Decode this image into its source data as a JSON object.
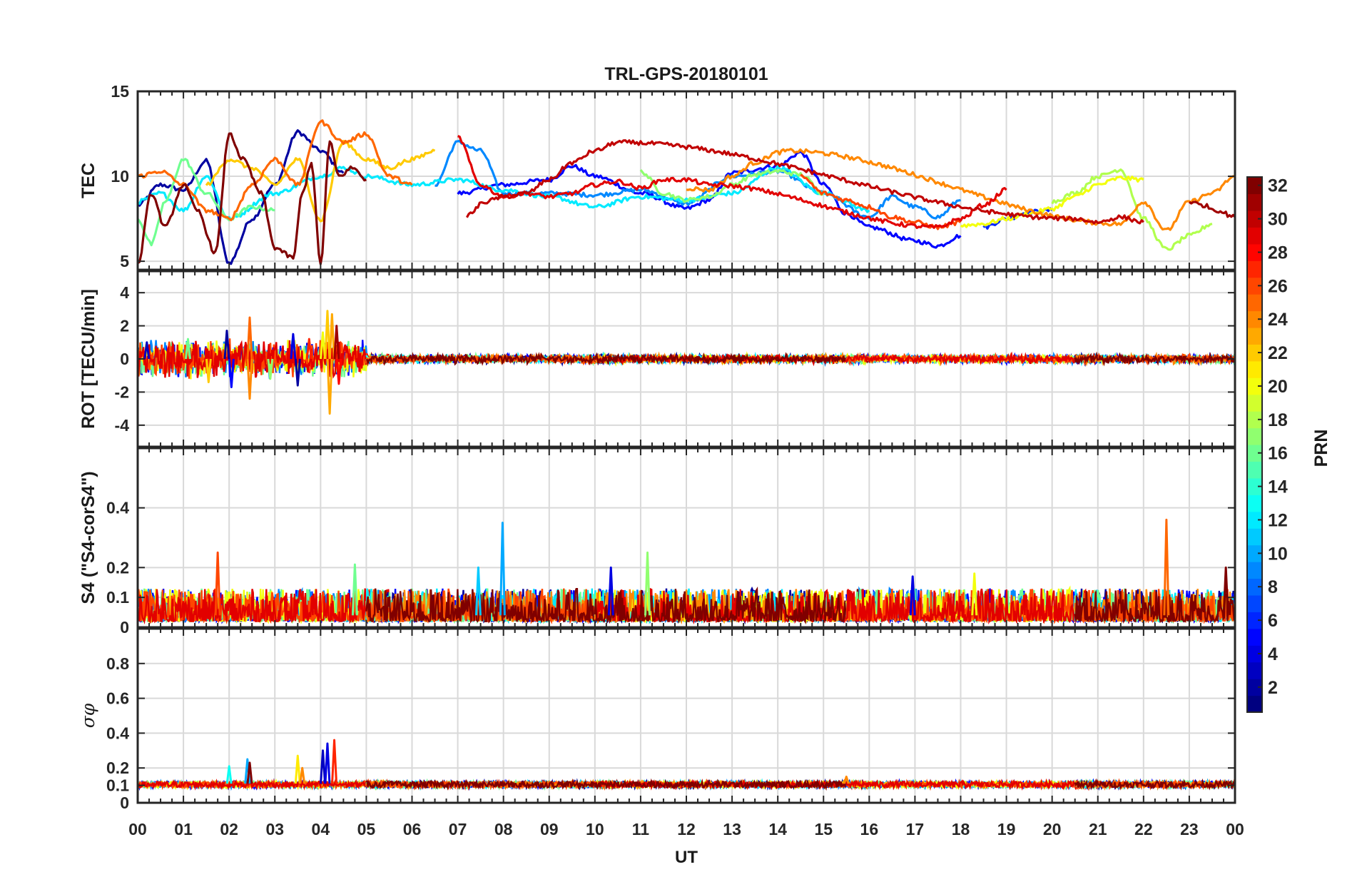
{
  "figure": {
    "title": "TRL-GPS-20180101",
    "xlabel": "UT",
    "x_ticks": [
      "00",
      "01",
      "02",
      "03",
      "04",
      "05",
      "06",
      "07",
      "08",
      "09",
      "10",
      "11",
      "12",
      "13",
      "14",
      "15",
      "16",
      "17",
      "18",
      "19",
      "20",
      "21",
      "22",
      "23",
      "00"
    ]
  },
  "colorbar": {
    "label": "PRN",
    "range": [
      1,
      32
    ],
    "tick_labels": [
      "2",
      "4",
      "6",
      "8",
      "10",
      "12",
      "14",
      "16",
      "18",
      "20",
      "22",
      "24",
      "26",
      "28",
      "30",
      "32"
    ],
    "colormap": "jet"
  },
  "chart_data": [
    {
      "type": "line",
      "panel": "tec",
      "ylabel": "TEC",
      "ylim": [
        4.5,
        15
      ],
      "yticks": [
        5,
        10,
        15
      ],
      "ytick_labels": [
        "5",
        "10",
        "15"
      ],
      "xlim": [
        0,
        24
      ],
      "series": [
        {
          "name": "PRN 2",
          "prn": 2,
          "x": [
            0.0,
            0.5,
            1.0,
            1.5,
            2.0,
            2.5,
            3.0,
            3.5,
            4.0,
            4.5
          ],
          "y": [
            8.3,
            9.5,
            9.2,
            10.9,
            4.9,
            7.5,
            9.5,
            12.6,
            11.5,
            10.2
          ]
        },
        {
          "name": "PRN 5",
          "prn": 5,
          "x": [
            7.0,
            8.0,
            9.0,
            9.5,
            10.0,
            11.0,
            12.0,
            12.5,
            13.0,
            14.0,
            14.5,
            15.0,
            15.5,
            16.0,
            17.0,
            17.5,
            18.0
          ],
          "y": [
            9.0,
            9.5,
            9.8,
            10.6,
            10.0,
            9.0,
            8.1,
            8.6,
            10.2,
            10.6,
            11.4,
            9.5,
            7.8,
            7.0,
            6.2,
            5.9,
            6.5
          ]
        },
        {
          "name": "PRN 6",
          "prn": 6,
          "x": [
            18.5,
            19.0,
            19.5,
            20.0
          ],
          "y": [
            7.0,
            7.5,
            7.9,
            8.0
          ]
        },
        {
          "name": "PRN 9",
          "prn": 9,
          "x": [
            6.5,
            7.0,
            7.5,
            8.0,
            9.0,
            10.0,
            11.0,
            12.0,
            13.0,
            14.0,
            15.0,
            16.0,
            16.5,
            17.0,
            17.5,
            18.0
          ],
          "y": [
            9.5,
            12.0,
            11.5,
            9.0,
            9.0,
            8.9,
            9.2,
            8.4,
            10.0,
            10.3,
            9.0,
            7.6,
            8.8,
            8.2,
            7.6,
            8.6
          ]
        },
        {
          "name": "PRN 12",
          "prn": 12,
          "x": [
            0.0,
            0.5,
            1.0,
            1.5,
            2.0,
            3.0,
            4.0,
            4.5,
            5.0,
            6.0,
            7.0,
            8.0,
            9.0,
            10.0,
            11.0,
            12.0,
            13.0,
            14.0,
            15.0,
            16.0
          ],
          "y": [
            8.5,
            9.0,
            8.0,
            10.0,
            7.5,
            9.0,
            10.0,
            10.5,
            10.0,
            9.5,
            9.8,
            9.2,
            8.8,
            8.2,
            8.8,
            8.6,
            9.0,
            10.5,
            9.0,
            8.0
          ]
        },
        {
          "name": "PRN 16",
          "prn": 16,
          "x": [
            0.0,
            0.3,
            0.6,
            1.0,
            1.5,
            2.0,
            2.5,
            3.0
          ],
          "y": [
            7.5,
            6.0,
            8.5,
            11.0,
            9.0,
            7.5,
            8.2,
            8.0
          ]
        },
        {
          "name": "PRN 17",
          "prn": 17,
          "x": [
            11.0,
            11.5,
            12.0,
            12.5,
            13.0,
            13.5,
            14.0,
            14.5,
            15.0
          ],
          "y": [
            10.3,
            9.0,
            8.6,
            8.8,
            9.5,
            10.1,
            10.3,
            10.1,
            9.0
          ]
        },
        {
          "name": "PRN 18",
          "prn": 18,
          "x": [
            20.0,
            20.5,
            21.0,
            21.5,
            22.0,
            22.5,
            23.0,
            23.5
          ],
          "y": [
            8.5,
            9.0,
            10.0,
            10.4,
            7.5,
            5.7,
            6.5,
            7.2
          ]
        },
        {
          "name": "PRN 20",
          "prn": 20,
          "x": [
            18.0,
            18.5,
            19.0,
            19.5,
            20.0,
            20.5,
            21.0,
            21.5,
            22.0
          ],
          "y": [
            7.1,
            7.2,
            7.5,
            7.8,
            8.1,
            8.8,
            9.5,
            9.9,
            9.8
          ]
        },
        {
          "name": "PRN 22",
          "prn": 22,
          "x": [
            1.5,
            2.0,
            2.5,
            3.0,
            3.5,
            4.0,
            4.5,
            5.0,
            5.5,
            6.0,
            6.5
          ],
          "y": [
            9.5,
            11.0,
            10.5,
            9.5,
            11.0,
            7.4,
            12.0,
            11.0,
            10.5,
            11.0,
            11.5
          ]
        },
        {
          "name": "PRN 24",
          "prn": 24,
          "x": [
            12.0,
            12.5,
            13.0,
            13.5,
            14.0,
            14.2,
            21.5,
            22.0,
            22.5,
            23.0,
            23.5,
            24.0
          ],
          "y": [
            9.3,
            9.2,
            10.0,
            10.8,
            11.4,
            11.5,
            7.2,
            8.5,
            6.8,
            8.5,
            9.0,
            10.0
          ]
        },
        {
          "name": "PRN 25",
          "prn": 25,
          "x": [
            0.0,
            0.5,
            1.0,
            1.5,
            2.0,
            2.5,
            3.0,
            3.5,
            4.0,
            4.5,
            5.0,
            5.5,
            6.0
          ],
          "y": [
            10.0,
            10.3,
            9.5,
            8.0,
            7.5,
            9.5,
            11.0,
            9.5,
            13.2,
            12.0,
            12.5,
            10.0,
            9.5
          ]
        },
        {
          "name": "PRN 26",
          "prn": 26,
          "x": [
            14.5,
            15.0,
            15.5,
            16.0,
            16.5,
            17.0,
            17.5,
            18.0
          ],
          "y": [
            10.0,
            9.0,
            8.6,
            8.2,
            7.6,
            7.3,
            7.0,
            7.3
          ]
        },
        {
          "name": "PRN 29",
          "prn": 29,
          "x": [
            7.0,
            7.5,
            8.0,
            8.5,
            9.0,
            9.5,
            10.0,
            10.5,
            11.0,
            11.5,
            12.0,
            12.5,
            17.5,
            18.0,
            18.5,
            19.0
          ],
          "y": [
            12.3,
            9.5,
            8.8,
            9.0,
            8.8,
            9.0,
            9.5,
            9.7,
            9.3,
            9.8,
            9.8,
            9.5,
            7.0,
            7.5,
            8.3,
            9.2
          ]
        },
        {
          "name": "PRN 30",
          "prn": 30,
          "x": [
            7.2,
            7.6,
            8.0,
            8.5,
            9.0,
            9.5,
            10.0,
            10.5,
            20.5,
            21.0,
            21.5,
            22.0
          ],
          "y": [
            7.7,
            8.5,
            8.8,
            9.0,
            9.8,
            10.8,
            11.5,
            12.0,
            7.5,
            7.3,
            7.6,
            7.3
          ]
        },
        {
          "name": "PRN 32",
          "prn": 32,
          "x": [
            0.0,
            0.3,
            0.6,
            1.0,
            1.3,
            1.7,
            2.0,
            2.3,
            2.7,
            3.0,
            3.4,
            3.6,
            3.8,
            4.0,
            4.2,
            4.4,
            4.7,
            5.0
          ],
          "y": [
            4.8,
            9.0,
            7.0,
            9.5,
            8.0,
            5.5,
            12.5,
            11.0,
            9.0,
            5.8,
            5.2,
            9.0,
            10.8,
            4.8,
            12.0,
            10.0,
            10.5,
            9.8
          ]
        },
        {
          "name": "PRN 31",
          "prn": 31,
          "x": [
            23.0,
            23.3,
            23.6,
            24.0
          ],
          "y": [
            8.5,
            8.3,
            8.0,
            7.6
          ]
        }
      ]
    },
    {
      "type": "line",
      "panel": "rot",
      "ylabel": "ROT [TECU/min]",
      "ylim": [
        -5.3,
        5.3
      ],
      "yticks": [
        -4,
        -2,
        0,
        2,
        4
      ],
      "ytick_labels": [
        "-4",
        "-2",
        "0",
        "2",
        "4"
      ],
      "xlim": [
        0,
        24
      ],
      "note": "Noisy ROT traces; large spikes between 00 and 05 UT, near-zero afterwards",
      "spikes": [
        {
          "x": 0.2,
          "y": 1.0,
          "prn": 3
        },
        {
          "x": 1.1,
          "y": 1.2,
          "prn": 16
        },
        {
          "x": 1.55,
          "y": -1.4,
          "prn": 22
        },
        {
          "x": 1.95,
          "y": 1.7,
          "prn": 2
        },
        {
          "x": 2.05,
          "y": -1.7,
          "prn": 5
        },
        {
          "x": 2.45,
          "y": 2.5,
          "prn": 25
        },
        {
          "x": 2.45,
          "y": -2.4,
          "prn": 24
        },
        {
          "x": 2.9,
          "y": -1.2,
          "prn": 17
        },
        {
          "x": 3.4,
          "y": 1.5,
          "prn": 4
        },
        {
          "x": 3.5,
          "y": -1.6,
          "prn": 2
        },
        {
          "x": 3.75,
          "y": 1.2,
          "prn": 27
        },
        {
          "x": 4.05,
          "y": 1.6,
          "prn": 20
        },
        {
          "x": 4.15,
          "y": 2.9,
          "prn": 22
        },
        {
          "x": 4.2,
          "y": -3.3,
          "prn": 23
        },
        {
          "x": 4.25,
          "y": 2.7,
          "prn": 23
        },
        {
          "x": 4.35,
          "y": 2.0,
          "prn": 31
        },
        {
          "x": 4.4,
          "y": -1.5,
          "prn": 28
        }
      ]
    },
    {
      "type": "line",
      "panel": "s4",
      "ylabel": "S4 (\"S4-corS4\")",
      "ylim": [
        0,
        0.6
      ],
      "yticks": [
        0,
        0.1,
        0.2,
        0.4
      ],
      "ytick_labels": [
        "0",
        "0.1",
        "0.2",
        "0.4"
      ],
      "xlim": [
        0,
        24
      ],
      "note": "Background S4 ~0.02-0.12 for all PRNs",
      "spikes": [
        {
          "x": 1.75,
          "y": 0.25,
          "prn": 26
        },
        {
          "x": 4.75,
          "y": 0.21,
          "prn": 16
        },
        {
          "x": 7.45,
          "y": 0.2,
          "prn": 11
        },
        {
          "x": 7.98,
          "y": 0.35,
          "prn": 10
        },
        {
          "x": 10.35,
          "y": 0.2,
          "prn": 4
        },
        {
          "x": 11.15,
          "y": 0.25,
          "prn": 17
        },
        {
          "x": 16.95,
          "y": 0.17,
          "prn": 4
        },
        {
          "x": 18.3,
          "y": 0.18,
          "prn": 20
        },
        {
          "x": 22.5,
          "y": 0.36,
          "prn": 25
        },
        {
          "x": 23.8,
          "y": 0.2,
          "prn": 32
        }
      ]
    },
    {
      "type": "line",
      "panel": "sigma_phi",
      "ylabel": "σφ",
      "ylim": [
        0,
        1
      ],
      "yticks": [
        0,
        0.1,
        0.2,
        0.4,
        0.6,
        0.8
      ],
      "ytick_labels": [
        "0",
        "0.1",
        "0.2",
        "0.4",
        "0.6",
        "0.8"
      ],
      "xlim": [
        0,
        24
      ],
      "note": "Background sigma-phi ~0.1-0.13; spikes near 02-05 UT",
      "spikes": [
        {
          "x": 2.0,
          "y": 0.21,
          "prn": 13
        },
        {
          "x": 2.4,
          "y": 0.25,
          "prn": 10
        },
        {
          "x": 2.45,
          "y": 0.23,
          "prn": 32
        },
        {
          "x": 3.5,
          "y": 0.27,
          "prn": 21
        },
        {
          "x": 3.6,
          "y": 0.2,
          "prn": 24
        },
        {
          "x": 4.05,
          "y": 0.3,
          "prn": 3
        },
        {
          "x": 4.15,
          "y": 0.34,
          "prn": 4
        },
        {
          "x": 4.3,
          "y": 0.36,
          "prn": 27
        },
        {
          "x": 15.5,
          "y": 0.15,
          "prn": 24
        }
      ]
    }
  ]
}
